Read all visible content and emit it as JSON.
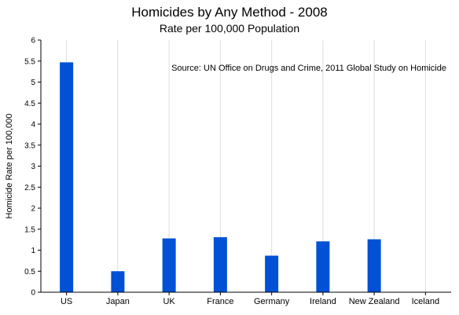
{
  "chart_data": {
    "type": "bar",
    "title": "Homicides by Any Method - 2008",
    "subtitle": "Rate per 100,000 Population",
    "xlabel": "",
    "ylabel": "Homicide Rate per 100,000",
    "annotation": "Source:  UN Office on Drugs and Crime, 2011 Global Study on Homicide",
    "categories": [
      "US",
      "Japan",
      "UK",
      "France",
      "Germany",
      "Ireland",
      "New Zealand",
      "Iceland"
    ],
    "values": [
      5.47,
      0.5,
      1.28,
      1.31,
      0.87,
      1.21,
      1.26,
      0
    ],
    "ylim": [
      0,
      6
    ],
    "yticks": [
      "0",
      "0.5",
      "1",
      "1.5",
      "2",
      "2.5",
      "3",
      "3.5",
      "4",
      "4.5",
      "5",
      "5.5",
      "6"
    ],
    "grid": "vertical-only",
    "bar_color": "#0051d6",
    "grid_color": "#dddddd",
    "axis_color": "#000000"
  }
}
